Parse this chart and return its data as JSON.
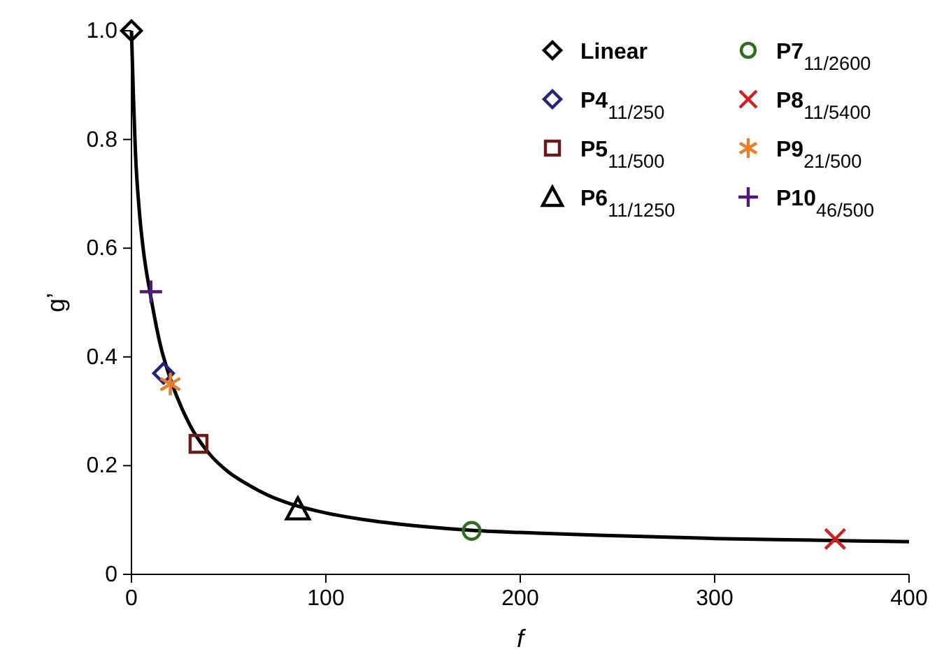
{
  "chart_data": {
    "type": "scatter",
    "xlabel": "f",
    "ylabel": "g’",
    "xlim": [
      0,
      400
    ],
    "xticks": [
      0,
      100,
      200,
      300,
      400
    ],
    "ylim": [
      0,
      1
    ],
    "yticks": [
      0,
      0.2,
      0.4,
      0.6,
      0.8,
      {
        "value": 1,
        "label": "1.0"
      }
    ],
    "grid": false,
    "legend": "top right",
    "series": [
      {
        "type": "line",
        "color": "#000000",
        "line_style": "solid",
        "x": [
          0,
          1,
          2,
          4,
          6,
          10,
          15,
          20,
          30,
          40,
          50,
          60,
          70,
          80,
          100,
          125,
          150,
          175,
          200,
          250,
          300,
          350,
          400
        ],
        "values": [
          1.0,
          0.88,
          0.78,
          0.67,
          0.6,
          0.51,
          0.42,
          0.36,
          0.275,
          0.222,
          0.188,
          0.165,
          0.146,
          0.132,
          0.113,
          0.098,
          0.088,
          0.081,
          0.077,
          0.071,
          0.066,
          0.063,
          0.06
        ]
      },
      {
        "name": "Linear",
        "color": "#000000",
        "marker": "diamond",
        "x": [
          0
        ],
        "values": [
          1.0
        ]
      },
      {
        "name": "P4$_{11/250}$",
        "color": "#23237a",
        "marker": "diamond",
        "x": [
          16.5
        ],
        "values": [
          0.37
        ]
      },
      {
        "name": "P5$_{11/500}$",
        "color": "#6b1a1a",
        "marker": "square",
        "x": [
          34.5
        ],
        "values": [
          0.24
        ]
      },
      {
        "name": "P6$_{11/1250}$",
        "color": "#000000",
        "marker": "triangle",
        "x": [
          85.6
        ],
        "values": [
          0.12
        ]
      },
      {
        "name": "P7$_{11/2600}$",
        "color": "#2e6e1e",
        "marker": "circle",
        "x": [
          175
        ],
        "values": [
          0.08
        ]
      },
      {
        "name": "P8$_{11/5400}$",
        "color": "#cc2222",
        "marker": "cross",
        "x": [
          362
        ],
        "values": [
          0.065
        ]
      },
      {
        "name": "P9$_{21/500}$",
        "color": "#e87e2c",
        "x": [
          20
        ],
        "values": [
          0.35
        ]
      },
      {
        "name": "P10$_{46/500}$",
        "color": "#4b1a7a",
        "marker": "plus",
        "x": [
          10
        ],
        "values": [
          0.52
        ]
      }
    ]
  }
}
